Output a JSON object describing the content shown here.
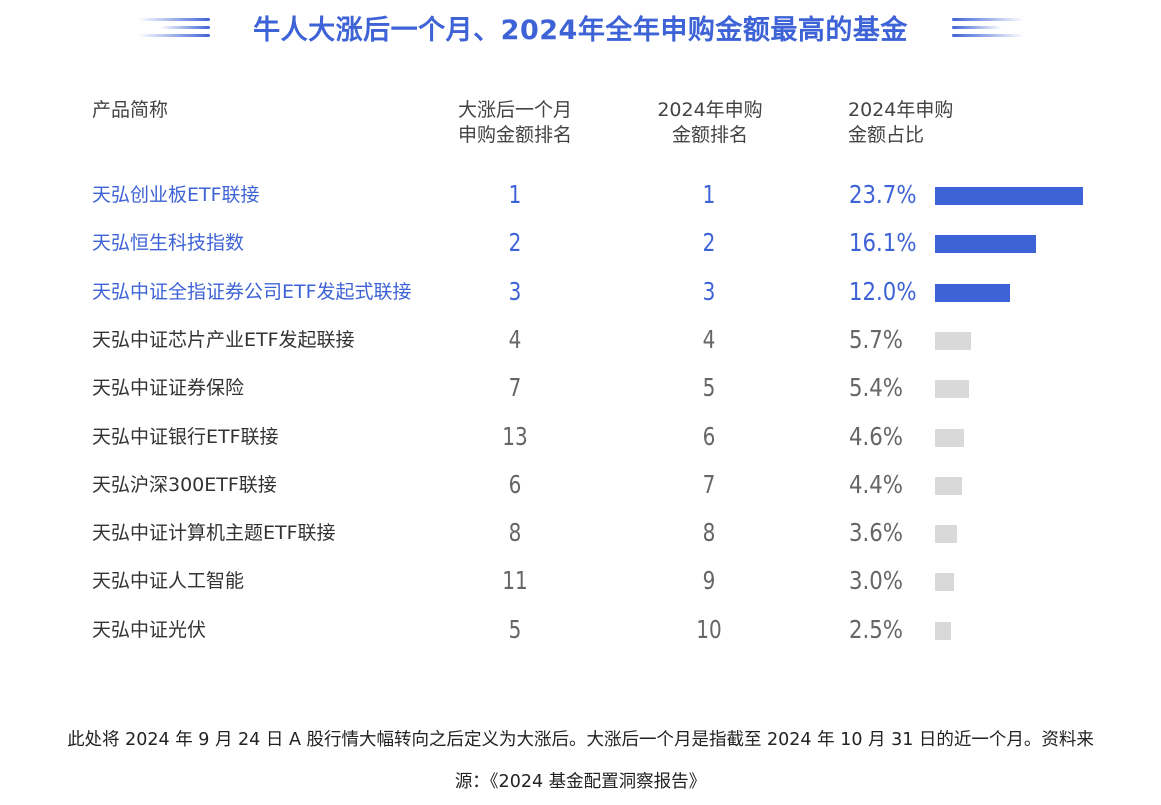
{
  "title": "牛人大涨后一个月、2024年全年申购金额最高的基金",
  "headers": {
    "name": "产品简称",
    "rank_after_surge": [
      "大涨后一个月",
      "申购金额排名"
    ],
    "rank_2024": [
      "2024年申购",
      "金额排名"
    ],
    "share_2024": [
      "2024年申购",
      "金额占比"
    ]
  },
  "colors": {
    "accent": "#3e63d6",
    "bar_gray": "#d9d9d9",
    "text": "#333333"
  },
  "chart_data": {
    "type": "table",
    "title": "牛人大涨后一个月、2024年全年申购金额最高的基金",
    "columns": [
      "产品简称",
      "大涨后一个月申购金额排名",
      "2024年申购金额排名",
      "2024年申购金额占比"
    ],
    "rows": [
      {
        "name": "天弘创业板ETF联接",
        "rank_after": "1",
        "rank_2024": "1",
        "share": 23.7,
        "share_label": "23.7%",
        "highlight": true
      },
      {
        "name": "天弘恒生科技指数",
        "rank_after": "2",
        "rank_2024": "2",
        "share": 16.1,
        "share_label": "16.1%",
        "highlight": true
      },
      {
        "name": "天弘中证全指证券公司ETF发起式联接",
        "rank_after": "3",
        "rank_2024": "3",
        "share": 12.0,
        "share_label": "12.0%",
        "highlight": true
      },
      {
        "name": "天弘中证芯片产业ETF发起联接",
        "rank_after": "4",
        "rank_2024": "4",
        "share": 5.7,
        "share_label": "5.7%",
        "highlight": false
      },
      {
        "name": "天弘中证证券保险",
        "rank_after": "7",
        "rank_2024": "5",
        "share": 5.4,
        "share_label": "5.4%",
        "highlight": false
      },
      {
        "name": "天弘中证银行ETF联接",
        "rank_after": "13",
        "rank_2024": "6",
        "share": 4.6,
        "share_label": "4.6%",
        "highlight": false
      },
      {
        "name": "天弘沪深300ETF联接",
        "rank_after": "6",
        "rank_2024": "7",
        "share": 4.4,
        "share_label": "4.4%",
        "highlight": false
      },
      {
        "name": "天弘中证计算机主题ETF联接",
        "rank_after": "8",
        "rank_2024": "8",
        "share": 3.6,
        "share_label": "3.6%",
        "highlight": false
      },
      {
        "name": "天弘中证人工智能",
        "rank_after": "11",
        "rank_2024": "9",
        "share": 3.0,
        "share_label": "3.0%",
        "highlight": false
      },
      {
        "name": "天弘中证光伏",
        "rank_after": "5",
        "rank_2024": "10",
        "share": 2.5,
        "share_label": "2.5%",
        "highlight": false
      }
    ]
  },
  "footnote": [
    "此处将 2024 年 9 月 24 日 A 股行情大幅转向之后定义为大涨后。大涨后一个月是指截至 2024 年 10 月 31 日的近一个月。资料来",
    "源：《2024 基金配置洞察报告》"
  ]
}
